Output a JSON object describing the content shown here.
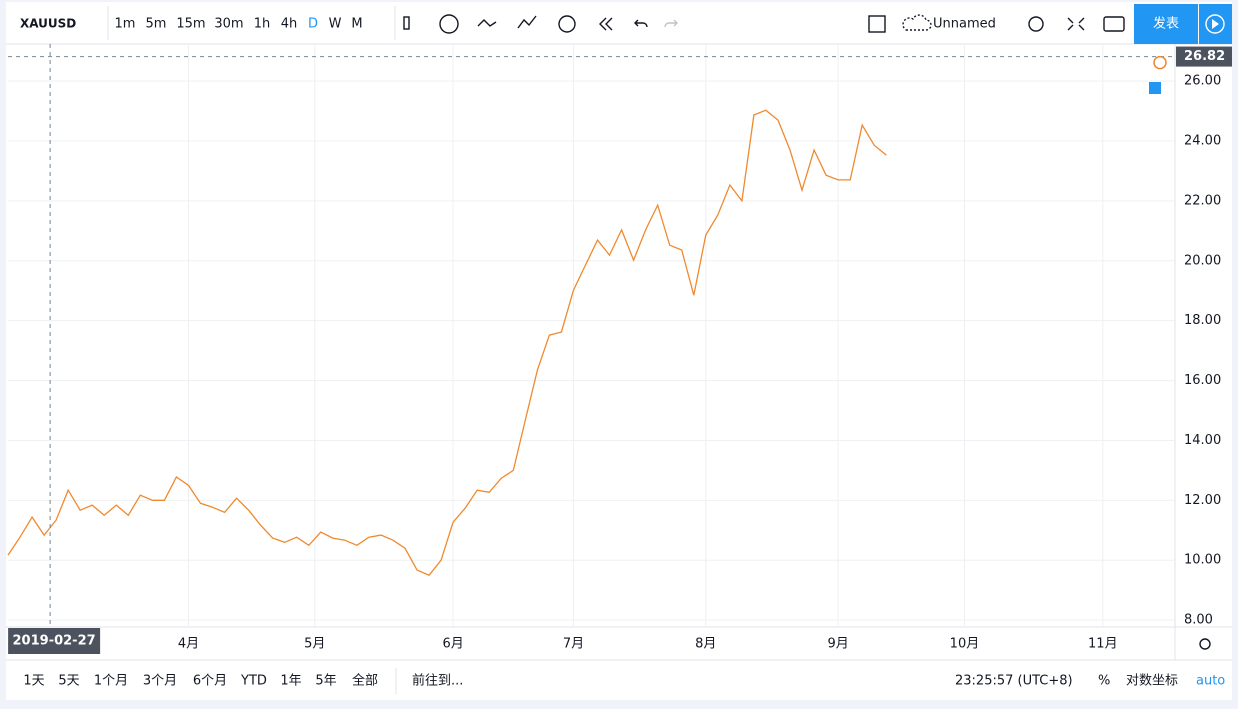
{
  "toolbar": {
    "symbol": "XAUUSD",
    "intervals": [
      "1m",
      "5m",
      "15m",
      "30m",
      "1h",
      "4h",
      "D",
      "W",
      "M"
    ],
    "active_interval": "D",
    "layout_name": "Unnamed",
    "publish": "发表"
  },
  "chart_data": {
    "type": "line",
    "color": "#f0892e",
    "grid": true,
    "x": [
      -7,
      -5,
      -3,
      -1,
      1,
      3,
      5,
      7,
      9,
      11,
      13,
      15,
      17,
      19,
      21,
      23,
      25,
      27,
      29,
      31,
      33,
      35,
      37,
      39,
      41,
      43,
      45,
      47,
      49,
      51,
      53,
      55,
      57,
      59,
      61,
      63,
      65,
      67,
      69,
      71,
      73,
      75,
      77,
      79,
      81,
      83,
      85,
      87,
      89,
      91,
      93,
      95,
      97,
      99,
      101,
      103,
      105,
      107,
      109,
      111,
      113,
      115,
      117,
      119,
      121,
      123,
      125,
      127,
      129,
      131,
      133,
      135,
      137,
      139
    ],
    "values": [
      10.17,
      10.77,
      11.44,
      10.84,
      11.34,
      12.34,
      11.67,
      11.84,
      11.5,
      11.84,
      11.5,
      12.17,
      12.0,
      12.0,
      12.78,
      12.5,
      11.9,
      11.77,
      11.6,
      12.07,
      11.67,
      11.17,
      10.74,
      10.6,
      10.77,
      10.5,
      10.94,
      10.74,
      10.67,
      10.5,
      10.77,
      10.84,
      10.67,
      10.4,
      9.67,
      9.5,
      10.0,
      11.27,
      11.74,
      12.34,
      12.27,
      12.74,
      13.0,
      14.68,
      16.35,
      17.52,
      17.62,
      19.02,
      19.86,
      20.69,
      20.19,
      21.03,
      20.02,
      21.03,
      21.86,
      20.52,
      20.36,
      18.85,
      20.86,
      21.53,
      22.53,
      22.0,
      24.87,
      25.03,
      24.7,
      23.7,
      22.36,
      23.7,
      22.86,
      22.7,
      22.7,
      24.53,
      23.86,
      23.53
    ],
    "xlim": [
      -7,
      187
    ],
    "xticks": [
      {
        "value": 23,
        "label": "4月"
      },
      {
        "value": 44,
        "label": "5月"
      },
      {
        "value": 67,
        "label": "6月"
      },
      {
        "value": 87,
        "label": "7月"
      },
      {
        "value": 109,
        "label": "8月"
      },
      {
        "value": 131,
        "label": "9月"
      },
      {
        "value": 152,
        "label": "10月"
      },
      {
        "value": 175,
        "label": "11月"
      }
    ],
    "ylim": [
      7.77,
      27.24
    ],
    "yticks": [
      {
        "value": 8,
        "label": "8.00"
      },
      {
        "value": 10,
        "label": "10.00"
      },
      {
        "value": 12,
        "label": "12.00"
      },
      {
        "value": 14,
        "label": "14.00"
      },
      {
        "value": 16,
        "label": "16.00"
      },
      {
        "value": 18,
        "label": "18.00"
      },
      {
        "value": 20,
        "label": "20.00"
      },
      {
        "value": 22,
        "label": "22.00"
      },
      {
        "value": 24,
        "label": "24.00"
      },
      {
        "value": 26,
        "label": "26.00"
      }
    ],
    "crosshair": {
      "x": 0,
      "x_label": "2019-02-27",
      "y": 26.82
    }
  },
  "footer": {
    "ranges": [
      "1天",
      "5天",
      "1个月",
      "3个月",
      "6个月",
      "YTD",
      "1年",
      "5年",
      "全部"
    ],
    "goto": "前往到...",
    "clock": "23:25:57 (UTC+8)",
    "percent": "%",
    "log": "对数坐标",
    "auto": "auto"
  }
}
